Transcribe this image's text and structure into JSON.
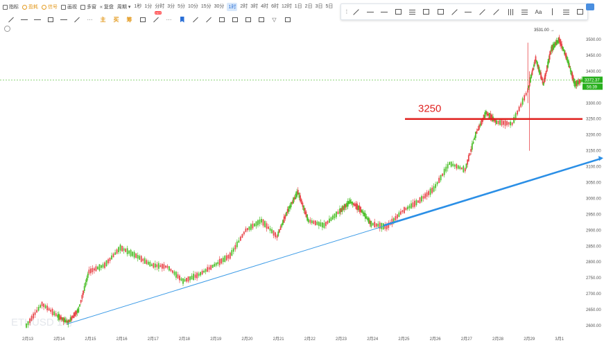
{
  "toolbar": {
    "indicators": "指标",
    "gold": "盈耗",
    "signal": "信号",
    "layout": "画视",
    "multi": "多窗",
    "replay": "复盘",
    "cycle": "周期",
    "timeframes": [
      "1秒",
      "1分",
      "分时",
      "3分",
      "5分",
      "10分",
      "15分",
      "30分",
      "1时",
      "2时",
      "3时",
      "4时",
      "6时",
      "12时",
      "1日",
      "2日",
      "3日",
      "5日"
    ],
    "active_timeframe": "1时"
  },
  "toolbar2": {
    "main": "主",
    "buy": "买",
    "prepare": "筹",
    "hot": "HOT"
  },
  "draw_panel": {
    "text_tool": "Aa"
  },
  "chart_data": {
    "type": "candlestick",
    "symbol_watermark": "ETHUSD 1时",
    "y_axis_ticks": [
      2600,
      2650,
      2700,
      2750,
      2800,
      2850,
      2900,
      2950,
      3000,
      3050,
      3100,
      3150,
      3200,
      3250,
      3300,
      3350,
      3400,
      3450,
      3500
    ],
    "ylim": [
      2590,
      3530
    ],
    "x_axis_ticks": [
      "2月13",
      "2月14",
      "2月15",
      "2月16",
      "2月17",
      "2月18",
      "2月19",
      "2月20",
      "2月21",
      "2月22",
      "2月23",
      "2月24",
      "2月25",
      "2月26",
      "2月27",
      "2月28",
      "2月29",
      "3月1"
    ],
    "current_price": "3372.37",
    "countdown": "56:39",
    "high_label": "3531.00",
    "annotation_text": "3250",
    "annotation_level": 3250,
    "colors": {
      "up": "#4cbf2a",
      "down": "#e8464a",
      "level_line": "#e0201e",
      "trend_thick": "#2b8fe6",
      "trend_thin": "#3a9ae6",
      "price_tag": "#29b01e"
    },
    "trendline": {
      "from": [
        "2月14",
        2605
      ],
      "to": [
        "3月1",
        3125
      ]
    },
    "trendline_thin": {
      "from": [
        "2月14",
        2605
      ],
      "to": [
        "2月24",
        2915
      ]
    },
    "ohlc_path": [
      [
        "2月13",
        2600
      ],
      [
        "2月13",
        2668
      ],
      [
        "2月14",
        2630
      ],
      [
        "2月14",
        2610
      ],
      [
        "2月14",
        2650
      ],
      [
        "2月15",
        2770
      ],
      [
        "2月15",
        2790
      ],
      [
        "2月16",
        2845
      ],
      [
        "2月16",
        2820
      ],
      [
        "2月17",
        2790
      ],
      [
        "2月17",
        2785
      ],
      [
        "2月18",
        2740
      ],
      [
        "2月18",
        2760
      ],
      [
        "2月19",
        2790
      ],
      [
        "2月19",
        2820
      ],
      [
        "2月20",
        2900
      ],
      [
        "2月20",
        2930
      ],
      [
        "2月21",
        2880
      ],
      [
        "2月21",
        2960
      ],
      [
        "2月21",
        3020
      ],
      [
        "2月22",
        2930
      ],
      [
        "2月22",
        2915
      ],
      [
        "2月23",
        2960
      ],
      [
        "2月23",
        2990
      ],
      [
        "2月23",
        2965
      ],
      [
        "2月24",
        2920
      ],
      [
        "2月24",
        2910
      ],
      [
        "2月25",
        2960
      ],
      [
        "2月25",
        2990
      ],
      [
        "2月26",
        3030
      ],
      [
        "2月26",
        3110
      ],
      [
        "2月27",
        3090
      ],
      [
        "2月27",
        3200
      ],
      [
        "2月27",
        3270
      ],
      [
        "2月28",
        3240
      ],
      [
        "2月28",
        3235
      ],
      [
        "2月29",
        3340
      ],
      [
        "2月29",
        3440
      ],
      [
        "2月29",
        3360
      ],
      [
        "2月29",
        3470
      ],
      [
        "3月1",
        3500
      ],
      [
        "3月1",
        3440
      ],
      [
        "3月1",
        3360
      ],
      [
        "3月1",
        3372
      ]
    ]
  }
}
